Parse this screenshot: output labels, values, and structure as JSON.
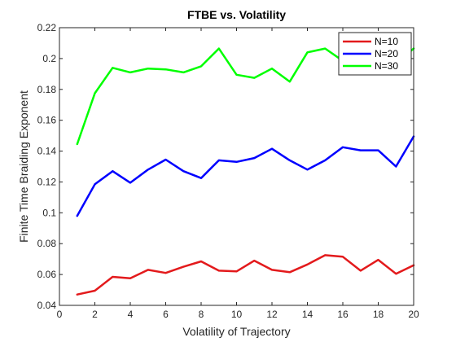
{
  "chart_data": {
    "type": "line",
    "title": "FTBE vs. Volatility",
    "xlabel": "Volatility of Trajectory",
    "ylabel": "Finite Time Braiding Exponent",
    "xlim": [
      0,
      20
    ],
    "ylim": [
      0.04,
      0.22
    ],
    "xticks": [
      0,
      2,
      4,
      6,
      8,
      10,
      12,
      14,
      16,
      18,
      20
    ],
    "yticks": [
      0.04,
      0.06,
      0.08,
      0.1,
      0.12,
      0.14,
      0.16,
      0.18,
      0.2,
      0.22
    ],
    "xtick_labels": [
      "0",
      "2",
      "4",
      "6",
      "8",
      "10",
      "12",
      "14",
      "16",
      "18",
      "20"
    ],
    "ytick_labels": [
      "0.04",
      "0.06",
      "0.08",
      "0.1",
      "0.12",
      "0.14",
      "0.16",
      "0.18",
      "0.2",
      "0.22"
    ],
    "grid": false,
    "legend_position": "top-right",
    "x": [
      1,
      2,
      3,
      4,
      5,
      6,
      7,
      8,
      9,
      10,
      11,
      12,
      13,
      14,
      15,
      16,
      17,
      18,
      19,
      20
    ],
    "series": [
      {
        "name": "N=10",
        "color": "#e31a1c",
        "values": [
          0.047,
          0.0495,
          0.0585,
          0.0575,
          0.063,
          0.061,
          0.065,
          0.0685,
          0.0625,
          0.062,
          0.069,
          0.063,
          0.0615,
          0.0665,
          0.0725,
          0.0715,
          0.0625,
          0.0695,
          0.0605,
          0.066
        ]
      },
      {
        "name": "N=20",
        "color": "#0000ff",
        "values": [
          0.098,
          0.1185,
          0.127,
          0.1195,
          0.128,
          0.1345,
          0.127,
          0.1225,
          0.134,
          0.133,
          0.1355,
          0.1415,
          0.134,
          0.128,
          0.134,
          0.1425,
          0.1405,
          0.1405,
          0.13,
          0.1495
        ]
      },
      {
        "name": "N=30",
        "color": "#00ff00",
        "values": [
          0.1445,
          0.1775,
          0.194,
          0.191,
          0.1935,
          0.193,
          0.191,
          0.195,
          0.2065,
          0.1895,
          0.1875,
          0.1935,
          0.185,
          0.204,
          0.2065,
          0.1985,
          0.2055,
          0.1995,
          0.1965,
          0.2065
        ]
      }
    ]
  }
}
